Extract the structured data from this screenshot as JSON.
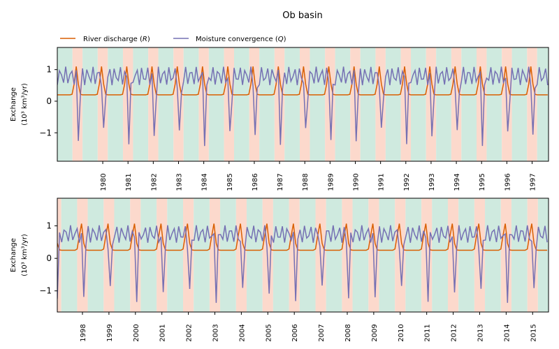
{
  "chart_data": {
    "type": "line",
    "title": "Ob basin",
    "legend": {
      "placement": "top-left",
      "entries": [
        {
          "label": "River discharge (R)",
          "color": "#d95f02"
        },
        {
          "label": "Moisture convergence (Q)",
          "color": "#7570b3"
        }
      ]
    },
    "ylabel": "Exchange (10³ km³/yr)",
    "ylabel_line1": "Exchange",
    "ylabel_line2": "(10³ km³/yr)",
    "shading_colors": {
      "pink": "#fcd9cc",
      "green": "#cfeadf"
    },
    "panels": [
      {
        "x_range": [
          1978.7,
          1998.15
        ],
        "ylim": [
          -1.9,
          1.7
        ],
        "yticks": [
          1,
          0,
          -1
        ],
        "ytick_labels": [
          "1",
          "0",
          "−1"
        ],
        "xticks": [
          "1980",
          "1981",
          "1982",
          "1983",
          "1984",
          "1985",
          "1986",
          "1987",
          "1988",
          "1989",
          "1990",
          "1991",
          "1992",
          "1993",
          "1994",
          "1995",
          "1996",
          "1997"
        ],
        "R_base": 0.2,
        "R_peak": 1.1,
        "R_peak_phase": 0.45,
        "Q_base": 0.8,
        "Q_amp": 0.65,
        "Q_min": -1.3,
        "Q_min_phase": 0.55
      },
      {
        "x_range": [
          1997.55,
          2016.1
        ],
        "ylim": [
          -1.65,
          1.85
        ],
        "yticks": [
          1,
          0,
          -1
        ],
        "ytick_labels": [
          "1",
          "0",
          "−1"
        ],
        "xticks": [
          "1998",
          "1999",
          "2000",
          "2001",
          "2002",
          "2003",
          "2004",
          "2005",
          "2006",
          "2007",
          "2008",
          "2009",
          "2010",
          "2011",
          "2012",
          "2013",
          "2014",
          "2015"
        ],
        "R_base": 0.25,
        "R_peak": 1.1,
        "R_peak_phase": 0.45,
        "Q_base": 0.75,
        "Q_amp": 0.6,
        "Q_min": -1.1,
        "Q_min_phase": 0.55
      }
    ]
  }
}
